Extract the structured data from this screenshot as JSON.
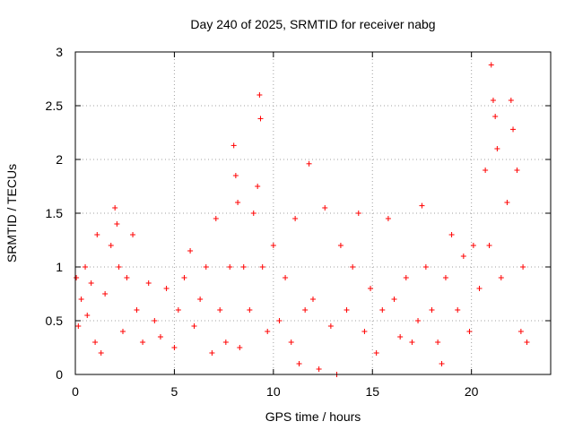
{
  "chart_data": {
    "type": "scatter",
    "title": "Day 240 of 2025, SRMTID for receiver nabg",
    "xlabel": "GPS time / hours",
    "ylabel": "SRMTID / TECUs",
    "xlim": [
      0,
      24
    ],
    "ylim": [
      0,
      3
    ],
    "xticks": [
      0,
      5,
      10,
      15,
      20
    ],
    "xtick_labels": [
      "0",
      "5",
      "10",
      "15",
      "20"
    ],
    "yticks": [
      0,
      0.5,
      1,
      1.5,
      2,
      2.5,
      3
    ],
    "ytick_labels": [
      "0",
      "0.5",
      "1",
      "1.5",
      "2",
      "2.5",
      "3"
    ],
    "grid": true,
    "marker": "+",
    "color": "#ff0000",
    "data_span_hours": [
      0,
      22.8
    ],
    "series": [
      {
        "name": "SRMTID",
        "points": [
          [
            0.05,
            0.9
          ],
          [
            0.15,
            0.45
          ],
          [
            0.3,
            0.7
          ],
          [
            0.5,
            1.0
          ],
          [
            0.6,
            0.55
          ],
          [
            0.8,
            0.85
          ],
          [
            1.0,
            0.3
          ],
          [
            1.1,
            1.3
          ],
          [
            1.3,
            0.2
          ],
          [
            1.5,
            0.75
          ],
          [
            1.8,
            1.2
          ],
          [
            2.0,
            1.55
          ],
          [
            2.1,
            1.4
          ],
          [
            2.2,
            1.0
          ],
          [
            2.4,
            0.4
          ],
          [
            2.6,
            0.9
          ],
          [
            2.9,
            1.3
          ],
          [
            3.1,
            0.6
          ],
          [
            3.4,
            0.3
          ],
          [
            3.7,
            0.85
          ],
          [
            4.0,
            0.5
          ],
          [
            4.3,
            0.35
          ],
          [
            4.6,
            0.8
          ],
          [
            5.0,
            0.25
          ],
          [
            5.2,
            0.6
          ],
          [
            5.5,
            0.9
          ],
          [
            5.8,
            1.15
          ],
          [
            6.0,
            0.45
          ],
          [
            6.3,
            0.7
          ],
          [
            6.6,
            1.0
          ],
          [
            6.9,
            0.2
          ],
          [
            7.1,
            1.45
          ],
          [
            7.3,
            0.6
          ],
          [
            7.6,
            0.3
          ],
          [
            7.8,
            1.0
          ],
          [
            8.0,
            2.13
          ],
          [
            8.1,
            1.85
          ],
          [
            8.2,
            1.6
          ],
          [
            8.3,
            0.25
          ],
          [
            8.5,
            1.0
          ],
          [
            8.8,
            0.6
          ],
          [
            9.0,
            1.5
          ],
          [
            9.2,
            1.75
          ],
          [
            9.3,
            2.6
          ],
          [
            9.35,
            2.38
          ],
          [
            9.45,
            1.0
          ],
          [
            9.7,
            0.4
          ],
          [
            10.0,
            1.2
          ],
          [
            10.3,
            0.5
          ],
          [
            10.6,
            0.9
          ],
          [
            10.9,
            0.3
          ],
          [
            11.1,
            1.45
          ],
          [
            11.3,
            0.1
          ],
          [
            11.6,
            0.6
          ],
          [
            11.8,
            1.96
          ],
          [
            12.0,
            0.7
          ],
          [
            12.3,
            0.05
          ],
          [
            12.6,
            1.55
          ],
          [
            12.9,
            0.45
          ],
          [
            13.2,
            0.0
          ],
          [
            13.4,
            1.2
          ],
          [
            13.7,
            0.6
          ],
          [
            14.0,
            1.0
          ],
          [
            14.3,
            1.5
          ],
          [
            14.6,
            0.4
          ],
          [
            14.9,
            0.8
          ],
          [
            15.2,
            0.2
          ],
          [
            15.5,
            0.6
          ],
          [
            15.8,
            1.45
          ],
          [
            16.1,
            0.7
          ],
          [
            16.4,
            0.35
          ],
          [
            16.7,
            0.9
          ],
          [
            17.0,
            0.3
          ],
          [
            17.3,
            0.5
          ],
          [
            17.5,
            1.57
          ],
          [
            17.7,
            1.0
          ],
          [
            18.0,
            0.6
          ],
          [
            18.3,
            0.3
          ],
          [
            18.5,
            0.1
          ],
          [
            18.7,
            0.9
          ],
          [
            19.0,
            1.3
          ],
          [
            19.3,
            0.6
          ],
          [
            19.6,
            1.1
          ],
          [
            19.9,
            0.4
          ],
          [
            20.1,
            1.2
          ],
          [
            20.4,
            0.8
          ],
          [
            20.7,
            1.9
          ],
          [
            20.9,
            1.2
          ],
          [
            21.0,
            2.88
          ],
          [
            21.1,
            2.55
          ],
          [
            21.2,
            2.4
          ],
          [
            21.3,
            2.1
          ],
          [
            21.5,
            0.9
          ],
          [
            21.8,
            1.6
          ],
          [
            22.0,
            2.55
          ],
          [
            22.1,
            2.28
          ],
          [
            22.3,
            1.9
          ],
          [
            22.5,
            0.4
          ],
          [
            22.6,
            1.0
          ],
          [
            22.8,
            0.3
          ]
        ]
      }
    ]
  }
}
